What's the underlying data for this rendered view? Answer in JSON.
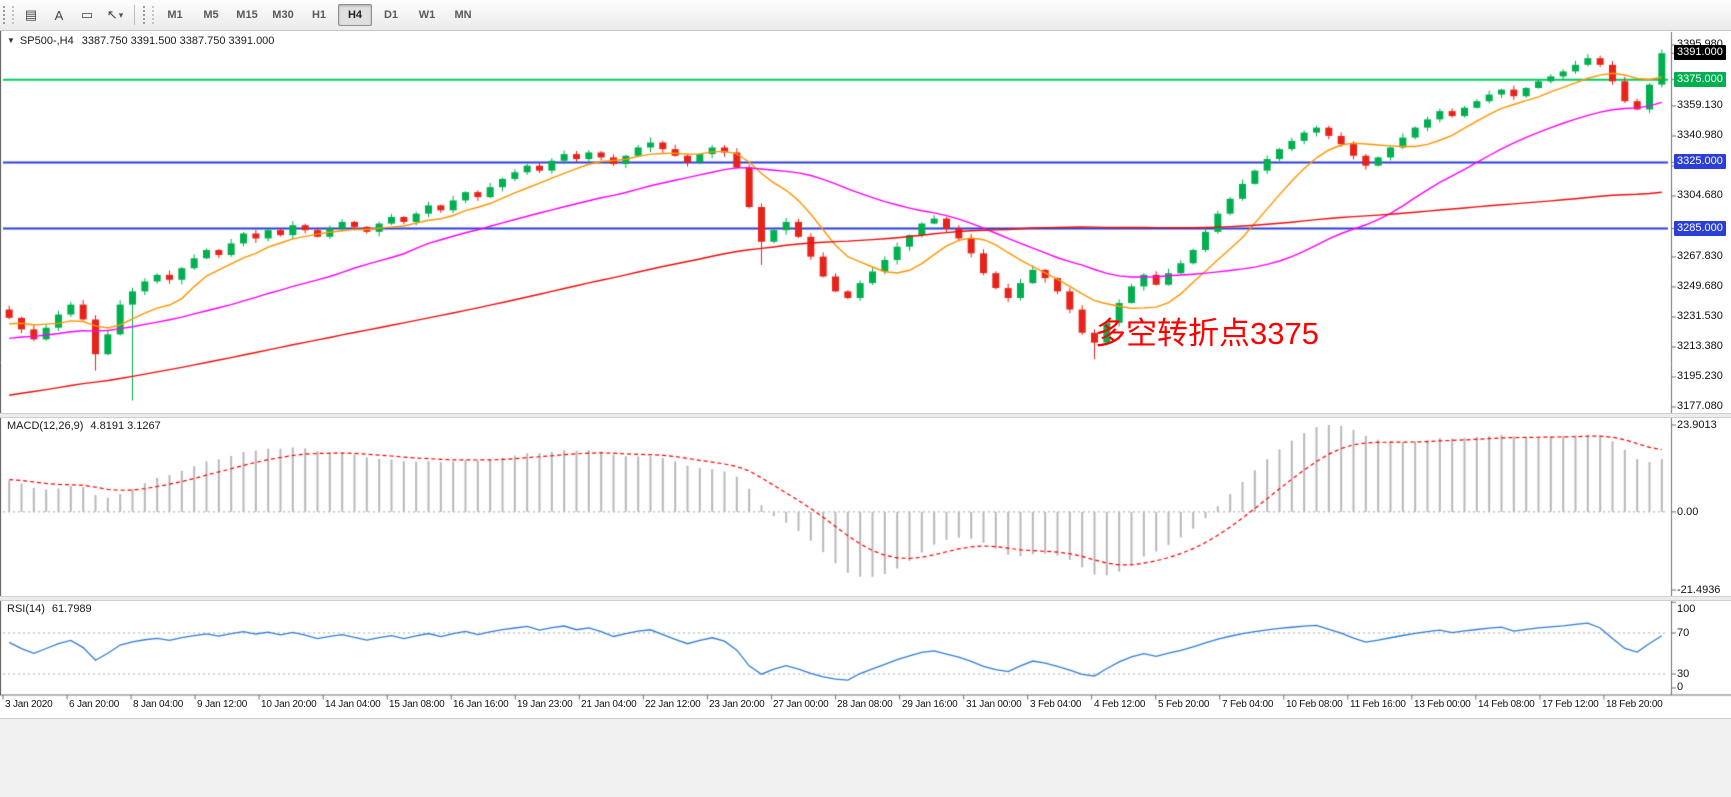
{
  "toolbar": {
    "tools": [
      {
        "name": "chart-windows-tool",
        "icon": "▤"
      },
      {
        "name": "text-tool",
        "icon": "A"
      },
      {
        "name": "shapes-tool",
        "icon": "▭"
      },
      {
        "name": "arrows-tool",
        "icon": "↖",
        "caret": "▾"
      }
    ],
    "timeframes": [
      "M1",
      "M5",
      "M15",
      "M30",
      "H1",
      "H4",
      "D1",
      "W1",
      "MN"
    ],
    "active_timeframe": "H4"
  },
  "chart_header": {
    "collapse_icon": "▼",
    "symbol_period": "SP500-,H4",
    "ohlc_text": "3387.750 3391.500 3387.750 3391.000"
  },
  "colors": {
    "bull": "#00b050",
    "bear": "#e8231a",
    "ma_fast": "#ff9500",
    "ma_mid": "#ff00ff",
    "ma_slow": "#f00c0c",
    "hline_green": "#00cc5c",
    "hline_blue": "#2b3fd6",
    "macd_hist": "#b8b8b8",
    "macd_signal": "#ff0000",
    "rsi_line": "#2f7ed8",
    "level_dotted": "#aaaaaa",
    "axis": "#6f6f6f"
  },
  "chart_data": {
    "type": "candlestick",
    "symbol": "SP500-",
    "timeframe": "H4",
    "title": "SP500-,H4 3387.750 3391.500 3387.750 3391.000",
    "ohlc_current": {
      "open": 3387.75,
      "high": 3391.5,
      "low": 3387.75,
      "close": 3391.0
    },
    "ylim": [
      3177.08,
      3395.98
    ],
    "first_open": 3236,
    "closes": [
      3231,
      3224,
      3218,
      3225,
      3233,
      3239,
      3230,
      3209,
      3221,
      3239,
      3247,
      3253,
      3257,
      3254,
      3261,
      3267,
      3272,
      3269,
      3276,
      3282,
      3279,
      3284,
      3281,
      3287,
      3284,
      3280,
      3285,
      3289,
      3286,
      3283,
      3288,
      3292,
      3289,
      3294,
      3299,
      3296,
      3302,
      3307,
      3304,
      3310,
      3315,
      3319,
      3323,
      3320,
      3326,
      3330,
      3327,
      3331,
      3328,
      3324,
      3329,
      3334,
      3337,
      3333,
      3329,
      3325,
      3330,
      3334,
      3331,
      3322,
      3298,
      3277,
      3284,
      3289,
      3280,
      3268,
      3256,
      3247,
      3243,
      3252,
      3259,
      3266,
      3274,
      3281,
      3288,
      3291,
      3285,
      3279,
      3270,
      3258,
      3249,
      3243,
      3252,
      3260,
      3255,
      3247,
      3236,
      3222,
      3216,
      3228,
      3240,
      3250,
      3257,
      3251,
      3258,
      3264,
      3272,
      3283,
      3294,
      3303,
      3312,
      3320,
      3327,
      3333,
      3338,
      3343,
      3346,
      3341,
      3336,
      3329,
      3323,
      3328,
      3334,
      3340,
      3346,
      3351,
      3356,
      3353,
      3358,
      3362,
      3366,
      3369,
      3365,
      3370,
      3374,
      3377,
      3380,
      3384,
      3388,
      3384,
      3374,
      3362,
      3357,
      3372,
      3391
    ],
    "wick_overrides": {
      "7": {
        "low": 3199
      },
      "10": {
        "low": 3181
      },
      "52": {
        "high": 3340
      },
      "61": {
        "low": 3263
      },
      "88": {
        "low": 3206
      }
    },
    "pre_close_anchors": [
      [
        0,
        3130
      ],
      [
        20,
        3158
      ],
      [
        40,
        3185
      ],
      [
        60,
        3212
      ],
      [
        79,
        3230
      ]
    ],
    "moving_averages": [
      {
        "name": "ma-fast",
        "period": 8,
        "color": "#ff9500"
      },
      {
        "name": "ma-mid",
        "period": 26,
        "color": "#ff00ff"
      },
      {
        "name": "ma-slow",
        "period": 80,
        "color": "#f00c0c"
      }
    ],
    "hlines": [
      {
        "value": 3375.0,
        "color": "#00cc5c"
      },
      {
        "value": 3325.0,
        "color": "#2b3fd6"
      },
      {
        "value": 3285.0,
        "color": "#2b3fd6"
      }
    ],
    "price_axis_labels": [
      {
        "text": "3395.980",
        "value": 3395.98
      },
      {
        "text": "3391.000",
        "value": 3391.0,
        "tag": "#000000"
      },
      {
        "text": "3375.000",
        "value": 3375.0,
        "tag": "#00b050"
      },
      {
        "text": "3359.130",
        "value": 3359.13
      },
      {
        "text": "3340.980",
        "value": 3340.98
      },
      {
        "text": "3325.000",
        "value": 3325.0,
        "tag": "#2b3fd6"
      },
      {
        "text": "3322.830",
        "value": 3322.83
      },
      {
        "text": "3304.680",
        "value": 3304.68
      },
      {
        "text": "3285.000",
        "value": 3285.0,
        "tag": "#2b3fd6"
      },
      {
        "text": "3267.830",
        "value": 3267.83
      },
      {
        "text": "3249.680",
        "value": 3249.68
      },
      {
        "text": "3231.530",
        "value": 3231.53
      },
      {
        "text": "3213.380",
        "value": 3213.38
      },
      {
        "text": "3195.230",
        "value": 3195.23
      },
      {
        "text": "3177.080",
        "value": 3177.08
      }
    ],
    "indicators": {
      "macd": {
        "label": "MACD(12,26,9)",
        "values_text": "4.8191 3.1267",
        "fast": 12,
        "slow": 26,
        "signal": 9,
        "ylim": [
          -21.4936,
          23.9013
        ],
        "axis": [
          {
            "text": "23.9013",
            "value": 23.9013
          },
          {
            "text": "0.00",
            "value": 0
          },
          {
            "text": "-21.4936",
            "value": -21.4936
          }
        ]
      },
      "rsi": {
        "label": "RSI(14)",
        "value_text": "61.7989",
        "period": 14,
        "levels": [
          70,
          30
        ],
        "axis": [
          {
            "text": "100",
            "value": 100
          },
          {
            "text": "70",
            "value": 70
          },
          {
            "text": "30",
            "value": 30
          },
          {
            "text": "0",
            "value": 0
          }
        ]
      }
    },
    "time_labels": [
      "3 Jan 2020",
      "6 Jan 20:00",
      "8 Jan 04:00",
      "9 Jan 12:00",
      "10 Jan 20:00",
      "14 Jan 04:00",
      "15 Jan 08:00",
      "16 Jan 16:00",
      "19 Jan 23:00",
      "21 Jan 04:00",
      "22 Jan 12:00",
      "23 Jan 20:00",
      "27 Jan 00:00",
      "28 Jan 08:00",
      "29 Jan 16:00",
      "31 Jan 00:00",
      "3 Feb 04:00",
      "4 Feb 12:00",
      "5 Feb 20:00",
      "7 Feb 04:00",
      "10 Feb 08:00",
      "11 Feb 16:00",
      "13 Feb 00:00",
      "14 Feb 08:00",
      "17 Feb 12:00",
      "18 Feb 20:00"
    ],
    "annotation": {
      "text": "多空转折点3375",
      "color": "#ff0000"
    }
  }
}
